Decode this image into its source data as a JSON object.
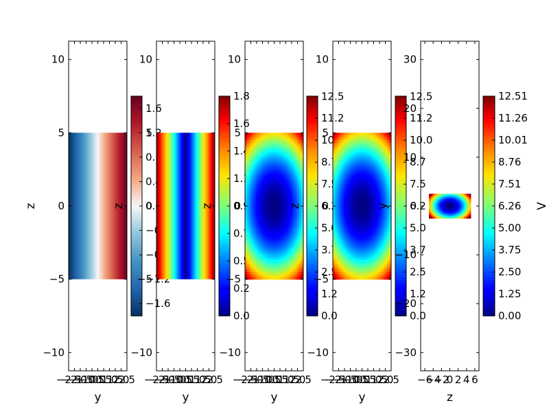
{
  "chart_data": [
    {
      "type": "heatmap",
      "panel": "1",
      "colormap": "RdBu_r",
      "xlabel": "y",
      "ylabel": "z",
      "xlim": [
        -2.5,
        2.5
      ],
      "ylim": [
        -11.25,
        11.25
      ],
      "xticks": [
        "−2.5",
        "−2.0",
        "−1.5",
        "−1.0",
        "−0.5",
        "0.0",
        "0.5",
        "1.0",
        "1.5",
        "2.0",
        "2.5"
      ],
      "xtick_values": [
        -2.5,
        -2.0,
        -1.5,
        -1.0,
        -0.5,
        0.0,
        0.5,
        1.0,
        1.5,
        2.0,
        2.5
      ],
      "yticks": [
        "−10",
        "−5",
        "0",
        "5",
        "10"
      ],
      "ytick_values": [
        -10,
        -5,
        0,
        5,
        10
      ],
      "extent": {
        "x": [
          -2.5,
          2.5
        ],
        "y": [
          -5,
          5
        ]
      },
      "field": "y",
      "colorbar_ticks": [
        "−1.6",
        "−1.2",
        "−0.8",
        "−0.4",
        "0.0",
        "0.4",
        "0.8",
        "1.2",
        "1.6"
      ],
      "colorbar_tick_values": [
        -1.6,
        -1.2,
        -0.8,
        -0.4,
        0.0,
        0.4,
        0.8,
        1.2,
        1.6
      ],
      "colorbar_range": [
        -1.8,
        1.8
      ],
      "colorbar_label": "",
      "colorbar_label_note": "hidden behind next panel"
    },
    {
      "type": "heatmap",
      "panel": "2",
      "colormap": "jet",
      "xlabel": "y",
      "ylabel": "z",
      "xlim": [
        -2.5,
        2.5
      ],
      "ylim": [
        -11.25,
        11.25
      ],
      "xticks": [
        "−2.5",
        "−2.0",
        "−1.5",
        "−1.0",
        "−0.5",
        "0.0",
        "0.5",
        "1.0",
        "1.5",
        "2.0",
        "2.5"
      ],
      "xtick_values": [
        -2.5,
        -2.0,
        -1.5,
        -1.0,
        -0.5,
        0.0,
        0.5,
        1.0,
        1.5,
        2.0,
        2.5
      ],
      "yticks": [
        "−10",
        "−5",
        "0",
        "5",
        "10"
      ],
      "ytick_values": [
        -10,
        -5,
        0,
        5,
        10
      ],
      "extent": {
        "x": [
          -2.5,
          2.5
        ],
        "y": [
          -5,
          5
        ]
      },
      "field": "abs_y",
      "colorbar_ticks": [
        "0.0",
        "0.2",
        "0.5",
        "0.7",
        "0.9",
        "1.1",
        "1.4",
        "1.6",
        "1.8"
      ],
      "colorbar_tick_values": [
        0.0,
        0.225,
        0.45,
        0.675,
        0.9,
        1.125,
        1.35,
        1.575,
        1.8
      ],
      "colorbar_range": [
        0.0,
        1.8
      ]
    },
    {
      "type": "heatmap",
      "panel": "3",
      "colormap": "jet",
      "xlabel": "y",
      "ylabel": "z",
      "xlim": [
        -2.5,
        2.5
      ],
      "ylim": [
        -11.25,
        11.25
      ],
      "xticks": [
        "−2.5",
        "−2.0",
        "−1.5",
        "−1.0",
        "−0.5",
        "0.0",
        "0.5",
        "1.0",
        "1.5",
        "2.0",
        "2.5"
      ],
      "xtick_values": [
        -2.5,
        -2.0,
        -1.5,
        -1.0,
        -0.5,
        0.0,
        0.5,
        1.0,
        1.5,
        2.0,
        2.5
      ],
      "yticks": [
        "−10",
        "−5",
        "0",
        "5",
        "10"
      ],
      "ytick_values": [
        -10,
        -5,
        0,
        5,
        10
      ],
      "extent": {
        "x": [
          -2.5,
          2.5
        ],
        "y": [
          -5,
          5
        ]
      },
      "field": "radial",
      "colorbar_ticks": [
        "0.0",
        "1.2",
        "2.5",
        "3.7",
        "5.0",
        "6.2",
        "7.5",
        "8.7",
        "10.0",
        "11.2",
        "12.5"
      ],
      "colorbar_tick_values": [
        0.0,
        1.25,
        2.5,
        3.75,
        5.0,
        6.25,
        7.5,
        8.75,
        10.0,
        11.25,
        12.5
      ],
      "colorbar_range": [
        0.0,
        12.51
      ]
    },
    {
      "type": "heatmap",
      "panel": "4",
      "colormap": "jet",
      "xlabel": "y",
      "ylabel": "z",
      "xlim": [
        -2.5,
        2.5
      ],
      "ylim": [
        -11.25,
        11.25
      ],
      "xticks": [
        "−2.5",
        "−2.0",
        "−1.5",
        "−1.0",
        "−0.5",
        "0.0",
        "0.5",
        "1.0",
        "1.5",
        "2.0",
        "2.5"
      ],
      "xtick_values": [
        -2.5,
        -2.0,
        -1.5,
        -1.0,
        -0.5,
        0.0,
        0.5,
        1.0,
        1.5,
        2.0,
        2.5
      ],
      "yticks": [
        "−10",
        "−5",
        "0",
        "5",
        "10"
      ],
      "ytick_values": [
        -10,
        -5,
        0,
        5,
        10
      ],
      "extent": {
        "x": [
          -2.5,
          2.5
        ],
        "y": [
          -5,
          5
        ]
      },
      "field": "radial",
      "colorbar_ticks": [
        "0.0",
        "1.2",
        "2.5",
        "3.7",
        "5.0",
        "6.2",
        "7.5",
        "8.7",
        "10.0",
        "11.2",
        "12.5"
      ],
      "colorbar_tick_values": [
        0.0,
        1.25,
        2.5,
        3.75,
        5.0,
        6.25,
        7.5,
        8.75,
        10.0,
        11.25,
        12.5
      ],
      "colorbar_range": [
        0.0,
        12.51
      ]
    },
    {
      "type": "heatmap",
      "panel": "5",
      "colormap": "jet",
      "xlabel": "z",
      "ylabel": "y",
      "xlim": [
        -7,
        7
      ],
      "ylim": [
        -33.75,
        33.75
      ],
      "xticks": [
        "−6",
        "−4",
        "−2",
        "0",
        "2",
        "4",
        "6"
      ],
      "xtick_values": [
        -6,
        -4,
        -2,
        0,
        2,
        4,
        6
      ],
      "yticks": [
        "−30",
        "−20",
        "−10",
        "0",
        "10",
        "20",
        "30"
      ],
      "ytick_values": [
        -30,
        -20,
        -10,
        0,
        10,
        20,
        30
      ],
      "extent": {
        "x": [
          -5,
          5
        ],
        "y": [
          -2.5,
          2.5
        ]
      },
      "field": "radial",
      "colorbar_ticks": [
        "0.00",
        "1.25",
        "2.50",
        "3.75",
        "5.00",
        "6.26",
        "7.51",
        "8.76",
        "10.01",
        "11.26",
        "12.51"
      ],
      "colorbar_tick_values": [
        0.0,
        1.251,
        2.502,
        3.753,
        5.004,
        6.255,
        7.506,
        8.757,
        10.008,
        11.259,
        12.51
      ],
      "colorbar_range": [
        0.0,
        12.51
      ],
      "colorbar_label": "V"
    }
  ]
}
